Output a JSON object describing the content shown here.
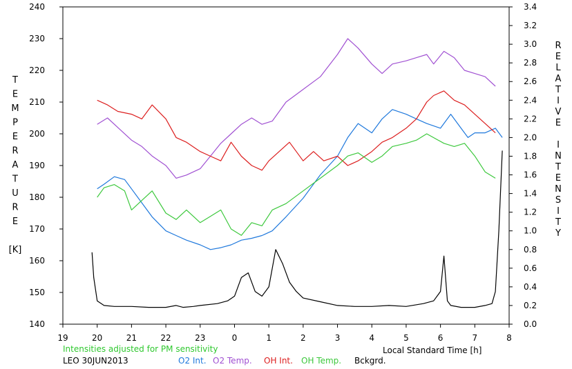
{
  "chart_data": {
    "type": "line",
    "xlabel": "Local Standard Time [h]",
    "x_ticks": [
      "19",
      "20",
      "21",
      "22",
      "23",
      "0",
      "1",
      "2",
      "3",
      "4",
      "5",
      "6",
      "7",
      "8"
    ],
    "x_range": [
      19,
      32
    ],
    "ylabel_left": "TEMPERATURE [K]",
    "ylabel_left_letters": [
      "T",
      "E",
      "M",
      "P",
      "E",
      "R",
      "A",
      "T",
      "U",
      "R",
      "E",
      "",
      "[K]"
    ],
    "ylim_left": [
      140,
      240
    ],
    "y_ticks_left": [
      "140",
      "150",
      "160",
      "170",
      "180",
      "190",
      "200",
      "210",
      "220",
      "230",
      "240"
    ],
    "ylabel_right": "RELATIVE INTENSITY",
    "ylabel_right_letters": [
      "R",
      "E",
      "L",
      "A",
      "T",
      "I",
      "V",
      "E",
      "",
      "I",
      "N",
      "T",
      "E",
      "N",
      "S",
      "I",
      "T",
      "Y"
    ],
    "ylim_right": [
      0.0,
      3.4
    ],
    "y_ticks_right": [
      "0.0",
      "0.2",
      "0.4",
      "0.6",
      "0.8",
      "1.0",
      "1.2",
      "1.4",
      "1.6",
      "1.8",
      "2.0",
      "2.2",
      "2.4",
      "2.6",
      "2.8",
      "3.0",
      "3.2",
      "3.4"
    ],
    "note": "Intensities adjusted for PM sensitivity",
    "station_date": "LEO 30JUN2013",
    "series": [
      {
        "name": "O2 Int.",
        "axis": "right",
        "color": "#1e78dc",
        "x": [
          20.0,
          20.2,
          20.5,
          20.8,
          21.0,
          21.3,
          21.6,
          22.0,
          22.3,
          22.6,
          23.0,
          23.3,
          23.6,
          23.9,
          24.2,
          24.5,
          24.8,
          25.1,
          25.5,
          26.0,
          26.5,
          27.0,
          27.3,
          27.6,
          28.0,
          28.3,
          28.6,
          29.0,
          29.3,
          29.6,
          30.0,
          30.3,
          30.6,
          30.8,
          31.0,
          31.3,
          31.6,
          31.8
        ],
        "y": [
          1.45,
          1.5,
          1.58,
          1.55,
          1.45,
          1.3,
          1.15,
          1.0,
          0.95,
          0.9,
          0.85,
          0.8,
          0.82,
          0.85,
          0.9,
          0.92,
          0.95,
          1.0,
          1.15,
          1.35,
          1.6,
          1.8,
          2.0,
          2.15,
          2.05,
          2.2,
          2.3,
          2.25,
          2.2,
          2.15,
          2.1,
          2.25,
          2.1,
          2.0,
          2.05,
          2.05,
          2.1,
          2.0
        ]
      },
      {
        "name": "O2 Temp.",
        "axis": "left",
        "color": "#a050d2",
        "x": [
          20.0,
          20.3,
          20.6,
          21.0,
          21.3,
          21.6,
          22.0,
          22.3,
          22.6,
          23.0,
          23.3,
          23.6,
          23.9,
          24.2,
          24.5,
          24.8,
          25.1,
          25.5,
          26.0,
          26.5,
          27.0,
          27.3,
          27.6,
          28.0,
          28.3,
          28.6,
          29.0,
          29.3,
          29.6,
          29.8,
          30.1,
          30.4,
          30.7,
          31.0,
          31.3,
          31.6
        ],
        "y": [
          203,
          205,
          202,
          198,
          196,
          193,
          190,
          186,
          187,
          189,
          193,
          197,
          200,
          203,
          205,
          203,
          204,
          210,
          214,
          218,
          225,
          230,
          227,
          222,
          219,
          222,
          223,
          224,
          225,
          222,
          226,
          224,
          220,
          219,
          218,
          215
        ]
      },
      {
        "name": "OH Int.",
        "axis": "right",
        "color": "#dc1e1e",
        "x": [
          20.0,
          20.3,
          20.6,
          21.0,
          21.3,
          21.6,
          22.0,
          22.3,
          22.6,
          23.0,
          23.3,
          23.6,
          23.9,
          24.2,
          24.5,
          24.8,
          25.0,
          25.3,
          25.6,
          26.0,
          26.3,
          26.6,
          27.0,
          27.3,
          27.6,
          28.0,
          28.3,
          28.6,
          29.0,
          29.3,
          29.6,
          29.8,
          30.1,
          30.4,
          30.7,
          31.0,
          31.3,
          31.6
        ],
        "y": [
          2.4,
          2.35,
          2.28,
          2.25,
          2.2,
          2.35,
          2.2,
          2.0,
          1.95,
          1.85,
          1.8,
          1.75,
          1.95,
          1.8,
          1.7,
          1.65,
          1.75,
          1.85,
          1.95,
          1.75,
          1.85,
          1.75,
          1.8,
          1.7,
          1.75,
          1.85,
          1.95,
          2.0,
          2.1,
          2.2,
          2.38,
          2.45,
          2.5,
          2.4,
          2.35,
          2.25,
          2.15,
          2.05
        ]
      },
      {
        "name": "OH Temp.",
        "axis": "left",
        "color": "#3cc83c",
        "x": [
          20.0,
          20.2,
          20.5,
          20.8,
          21.0,
          21.3,
          21.6,
          22.0,
          22.3,
          22.6,
          23.0,
          23.3,
          23.6,
          23.9,
          24.2,
          24.5,
          24.8,
          25.1,
          25.5,
          26.0,
          26.5,
          27.0,
          27.3,
          27.6,
          28.0,
          28.3,
          28.6,
          29.0,
          29.3,
          29.6,
          30.1,
          30.4,
          30.7,
          31.0,
          31.3,
          31.6
        ],
        "y": [
          180,
          183,
          184,
          182,
          176,
          179,
          182,
          175,
          173,
          176,
          172,
          174,
          176,
          170,
          168,
          172,
          171,
          176,
          178,
          182,
          186,
          190,
          193,
          194,
          191,
          193,
          196,
          197,
          198,
          200,
          197,
          196,
          197,
          193,
          188,
          186
        ]
      },
      {
        "name": "Bckgrd.",
        "axis": "right",
        "color": "#000000",
        "x": [
          19.85,
          19.9,
          20.0,
          20.2,
          20.5,
          21.0,
          21.5,
          22.0,
          22.3,
          22.5,
          22.8,
          23.0,
          23.5,
          23.8,
          24.0,
          24.2,
          24.4,
          24.6,
          24.8,
          25.0,
          25.2,
          25.4,
          25.6,
          25.8,
          26.0,
          26.5,
          27.0,
          27.5,
          28.0,
          28.5,
          29.0,
          29.5,
          29.8,
          30.0,
          30.1,
          30.2,
          30.3,
          30.6,
          31.0,
          31.3,
          31.5,
          31.6,
          31.7,
          31.8
        ],
        "y": [
          0.77,
          0.5,
          0.25,
          0.2,
          0.19,
          0.19,
          0.18,
          0.18,
          0.2,
          0.18,
          0.19,
          0.2,
          0.22,
          0.25,
          0.3,
          0.5,
          0.55,
          0.35,
          0.3,
          0.4,
          0.8,
          0.65,
          0.45,
          0.35,
          0.28,
          0.24,
          0.2,
          0.19,
          0.19,
          0.2,
          0.19,
          0.22,
          0.25,
          0.35,
          0.73,
          0.25,
          0.2,
          0.18,
          0.18,
          0.2,
          0.22,
          0.35,
          1.0,
          1.86
        ]
      }
    ]
  }
}
